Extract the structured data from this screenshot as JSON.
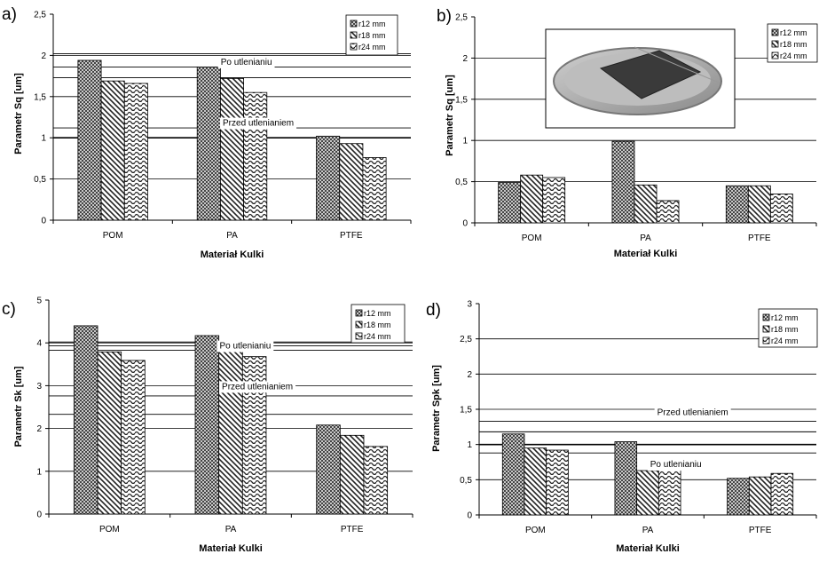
{
  "chart_data": [
    {
      "panel_label": "a)",
      "type": "bar",
      "categories": [
        "POM",
        "PA",
        "PTFE"
      ],
      "series": [
        {
          "name": "r12 mm",
          "values": [
            1.94,
            1.86,
            1.02
          ]
        },
        {
          "name": "r18 mm",
          "values": [
            1.69,
            1.72,
            0.93
          ]
        },
        {
          "name": "r24 mm",
          "values": [
            1.66,
            1.55,
            0.76
          ]
        }
      ],
      "ylabel": "Parametr Sq [um]",
      "xlabel": "Materiał Kulki",
      "ylim": [
        0,
        2.5
      ],
      "yticks": [
        "0",
        "0,5",
        "1",
        "1,5",
        "2",
        "2,5"
      ],
      "grid_lines": [
        0.5,
        1.0,
        1.5,
        2.0
      ],
      "ref_lines": [
        1.0,
        1.12,
        1.73,
        1.86,
        2.02
      ],
      "annotations": [
        {
          "text": "Po utlenianiu",
          "value": 1.93,
          "category_pos": 1.62
        },
        {
          "text": "Przed utlenianiem",
          "value": 1.19,
          "category_pos": 1.72
        }
      ],
      "legend_position": "top-right"
    },
    {
      "panel_label": "b)",
      "type": "bar",
      "categories": [
        "POM",
        "PA",
        "PTFE"
      ],
      "series": [
        {
          "name": "r12 mm",
          "values": [
            0.49,
            0.99,
            0.45
          ]
        },
        {
          "name": "r18 mm",
          "values": [
            0.58,
            0.46,
            0.45
          ]
        },
        {
          "name": "r24 mm",
          "values": [
            0.55,
            0.27,
            0.35
          ]
        }
      ],
      "ylabel": "Parametr Sq [um]",
      "xlabel": "Materiał Kulki",
      "ylim": [
        0,
        2.5
      ],
      "yticks": [
        "0",
        "0,5",
        "1",
        "1,5",
        "2",
        "2,5"
      ],
      "grid_lines": [
        0.5,
        1.0,
        1.5,
        2.0
      ],
      "ref_lines": [],
      "annotations": [],
      "has_inset_photo": true,
      "legend_position": "top-right"
    },
    {
      "panel_label": "c)",
      "type": "bar",
      "categories": [
        "POM",
        "PA",
        "PTFE"
      ],
      "series": [
        {
          "name": "r12 mm",
          "values": [
            4.4,
            4.17,
            2.08
          ]
        },
        {
          "name": "r18 mm",
          "values": [
            3.79,
            3.9,
            1.84
          ]
        },
        {
          "name": "r24 mm",
          "values": [
            3.59,
            3.68,
            1.58
          ]
        }
      ],
      "ylabel": "Parametr Sk [um]",
      "xlabel": "Materiał Kulki",
      "ylim": [
        0,
        5
      ],
      "yticks": [
        "0",
        "1",
        "2",
        "3",
        "4",
        "5"
      ],
      "grid_lines": [
        1,
        2,
        3,
        4
      ],
      "ref_lines": [
        2.33,
        2.76,
        3.83,
        3.93,
        4.02
      ],
      "annotations": [
        {
          "text": "Po utlenianiu",
          "value": 3.95,
          "category_pos": 1.62
        },
        {
          "text": "Przed utlenianiem",
          "value": 3.0,
          "category_pos": 1.72
        }
      ],
      "legend_position": "top-right"
    },
    {
      "panel_label": "d)",
      "type": "bar",
      "categories": [
        "POM",
        "PA",
        "PTFE"
      ],
      "series": [
        {
          "name": "r12 mm",
          "values": [
            1.15,
            1.04,
            0.52
          ]
        },
        {
          "name": "r18 mm",
          "values": [
            0.95,
            0.63,
            0.54
          ]
        },
        {
          "name": "r24 mm",
          "values": [
            0.92,
            0.65,
            0.59
          ]
        }
      ],
      "ylabel": "Parametr Spk [um]",
      "xlabel": "Materiał Kulki",
      "ylim": [
        0,
        3
      ],
      "yticks": [
        "0",
        "0,5",
        "1",
        "1,5",
        "2",
        "2,5",
        "3"
      ],
      "grid_lines": [
        0.5,
        1.0,
        1.5,
        2.0,
        2.5
      ],
      "ref_lines": [
        0.88,
        1.0,
        1.18,
        1.33
      ],
      "annotations": [
        {
          "text": "Przed utlenianiem",
          "value": 1.47,
          "category_pos": 1.9
        },
        {
          "text": "Po utlenianiu",
          "value": 0.73,
          "category_pos": 1.75
        }
      ],
      "legend_position": "top-right"
    }
  ]
}
